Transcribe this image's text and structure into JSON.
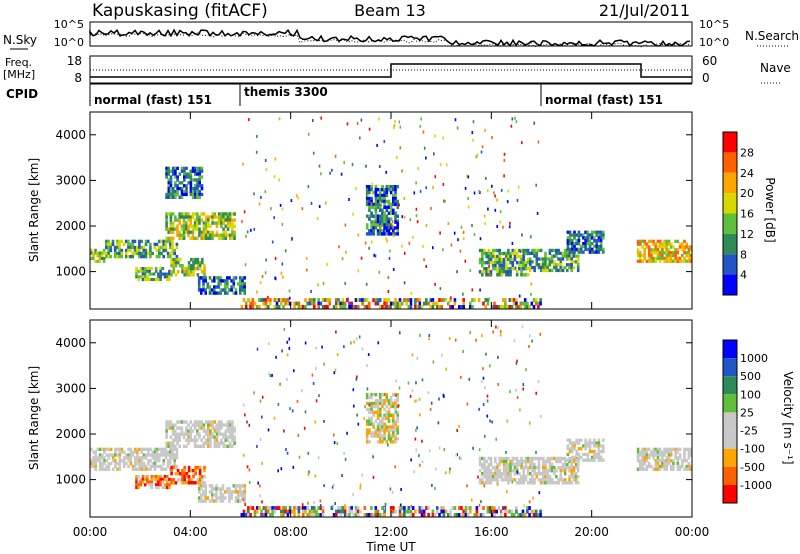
{
  "header": {
    "station": "Kapuskasing (fitACF)",
    "beam": "Beam 13",
    "date": "21/Jul/2011"
  },
  "status_panel": {
    "nsky_label": "N.Sky",
    "nsky_ticks": [
      "10^5",
      "10^0"
    ],
    "nsearch_label": "N.Search",
    "nsearch_ticks": [
      "10^5",
      "10^0"
    ],
    "freq_label_line1": "Freq.",
    "freq_label_line2": "[MHz]",
    "freq_ticks": [
      "18",
      "8"
    ],
    "nave_label": "Nave",
    "nave_ticks": [
      "60",
      "0"
    ],
    "cpid_label": "CPID",
    "cpid_segments": [
      {
        "label": "normal (fast) 151",
        "start_hour": 0,
        "end_hour": 6
      },
      {
        "label": "themis 3300",
        "start_hour": 6,
        "end_hour": 18
      },
      {
        "label": "normal (fast) 151",
        "start_hour": 18,
        "end_hour": 24
      }
    ]
  },
  "colors": {
    "power_scale": [
      "#0000ff",
      "#2255c8",
      "#2e8b57",
      "#5fbf3a",
      "#d8d800",
      "#ffa500",
      "#ff6000",
      "#ff0000"
    ],
    "velocity_scale": [
      "#ff0000",
      "#ff6000",
      "#ffa500",
      "#c8c8c8",
      "#c8c8c8",
      "#5fbf3a",
      "#2e8b57",
      "#2255c8",
      "#0000ff"
    ],
    "ground_scatter": "#c8c8c8"
  },
  "chart_data": [
    {
      "type": "heatmap",
      "name": "power",
      "ylabel": "Slant Range [km]",
      "xlabel": "Time UT",
      "colorbar_label": "Power [dB]",
      "colorbar_ticks": [
        "4",
        "8",
        "12",
        "16",
        "20",
        "24",
        "28"
      ],
      "ylim": [
        180,
        4500
      ],
      "yticks": [
        1000,
        2000,
        3000,
        4000
      ],
      "xlim": [
        0,
        24
      ],
      "xticks": [
        "00:00",
        "04:00",
        "08:00",
        "12:00",
        "16:00",
        "20:00",
        "00:00"
      ],
      "echo_regions": [
        {
          "t0": 0.0,
          "t1": 0.6,
          "r0": 1200,
          "r1": 1500,
          "level": 3
        },
        {
          "t0": 0.6,
          "t1": 3.5,
          "r0": 1300,
          "r1": 1700,
          "level": 2
        },
        {
          "t0": 3.0,
          "t1": 5.8,
          "r0": 1700,
          "r1": 2300,
          "level": 3
        },
        {
          "t0": 3.0,
          "t1": 4.5,
          "r0": 2600,
          "r1": 3300,
          "level": 1
        },
        {
          "t0": 1.8,
          "t1": 3.2,
          "r0": 800,
          "r1": 1100,
          "level": 2
        },
        {
          "t0": 3.2,
          "t1": 4.6,
          "r0": 900,
          "r1": 1300,
          "level": 3
        },
        {
          "t0": 4.3,
          "t1": 6.2,
          "r0": 500,
          "r1": 900,
          "level": 1
        },
        {
          "t0": 6.0,
          "t1": 18.0,
          "r0": 190,
          "r1": 420,
          "level": 4
        },
        {
          "t0": 11.0,
          "t1": 12.3,
          "r0": 1800,
          "r1": 2900,
          "level": 1
        },
        {
          "t0": 15.5,
          "t1": 17.5,
          "r0": 900,
          "r1": 1500,
          "level": 2
        },
        {
          "t0": 17.5,
          "t1": 19.5,
          "r0": 1000,
          "r1": 1500,
          "level": 2
        },
        {
          "t0": 19.0,
          "t1": 20.5,
          "r0": 1400,
          "r1": 1900,
          "level": 1
        },
        {
          "t0": 21.8,
          "t1": 24.0,
          "r0": 1200,
          "r1": 1700,
          "level": 4
        }
      ]
    },
    {
      "type": "heatmap",
      "name": "velocity",
      "ylabel": "Slant Range [km]",
      "xlabel": "Time UT",
      "colorbar_label": "Velocity [m s⁻¹]",
      "colorbar_ticks": [
        "1000",
        "500",
        "100",
        "25",
        "-25",
        "-100",
        "-500",
        "-1000"
      ],
      "ylim": [
        180,
        4500
      ],
      "yticks": [
        1000,
        2000,
        3000,
        4000
      ],
      "xlim": [
        0,
        24
      ],
      "xticks": [
        "00:00",
        "04:00",
        "08:00",
        "12:00",
        "16:00",
        "20:00",
        "00:00"
      ],
      "echo_regions": [
        {
          "t0": 0.0,
          "t1": 3.5,
          "r0": 1200,
          "r1": 1700,
          "level": 0
        },
        {
          "t0": 3.0,
          "t1": 5.8,
          "r0": 1700,
          "r1": 2300,
          "level": 0
        },
        {
          "t0": 1.8,
          "t1": 3.2,
          "r0": 800,
          "r1": 1100,
          "level": 1
        },
        {
          "t0": 3.2,
          "t1": 4.6,
          "r0": 900,
          "r1": 1300,
          "level": 1
        },
        {
          "t0": 4.3,
          "t1": 6.2,
          "r0": 500,
          "r1": 900,
          "level": 0
        },
        {
          "t0": 6.0,
          "t1": 18.0,
          "r0": 190,
          "r1": 420,
          "level": 2
        },
        {
          "t0": 11.0,
          "t1": 12.3,
          "r0": 1800,
          "r1": 2900,
          "level": 3
        },
        {
          "t0": 15.5,
          "t1": 19.5,
          "r0": 900,
          "r1": 1500,
          "level": 0
        },
        {
          "t0": 19.0,
          "t1": 20.5,
          "r0": 1400,
          "r1": 1900,
          "level": 0
        },
        {
          "t0": 21.8,
          "t1": 24.0,
          "r0": 1200,
          "r1": 1700,
          "level": 0
        }
      ]
    }
  ]
}
